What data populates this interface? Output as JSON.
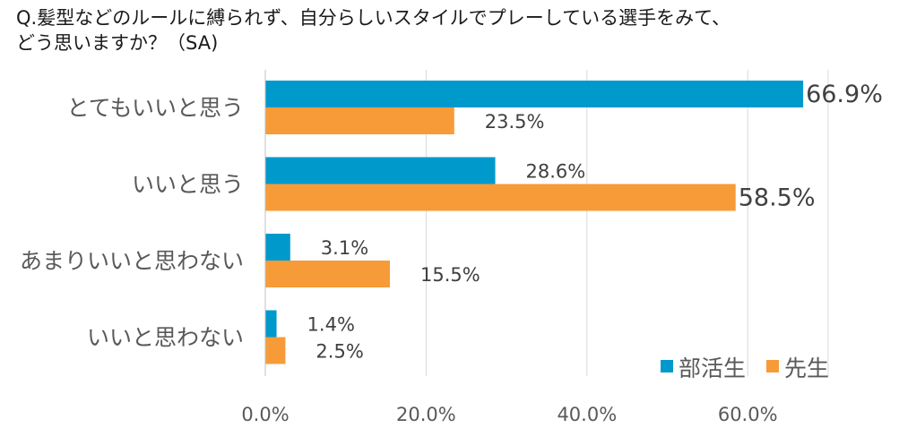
{
  "question": "Q.髪型などのルールに縛られず、自分らしいスタイルでプレーしている選手をみて、\nどう思いますか？（SA)",
  "chart_data": {
    "type": "bar",
    "orientation": "horizontal",
    "title": "Q.髪型などのルールに縛られず、自分らしいスタイルでプレーしている選手をみて、どう思いますか？（SA)",
    "categories": [
      "とてもいいと思う",
      "いいと思う",
      "あまりいいと思わない",
      "いいと思わない"
    ],
    "series": [
      {
        "name": "部活生",
        "color": "#0099cc",
        "values": [
          66.9,
          28.6,
          3.1,
          1.4
        ],
        "labels": [
          "66.9%",
          "28.6%",
          "3.1%",
          "1.4%"
        ]
      },
      {
        "name": "先生",
        "color": "#f79b39",
        "values": [
          23.5,
          58.5,
          15.5,
          2.5
        ],
        "labels": [
          "23.5%",
          "58.5%",
          "15.5%",
          "2.5%"
        ]
      }
    ],
    "xlim": [
      0,
      70
    ],
    "ticks": [
      0,
      20,
      40,
      60
    ],
    "tick_labels": [
      "0.0%",
      "20.0%",
      "40.0%",
      "60.0%"
    ],
    "grid": true,
    "legend_position": "bottom-right",
    "highlight_labels": [
      "66.9%",
      "58.5%"
    ]
  }
}
